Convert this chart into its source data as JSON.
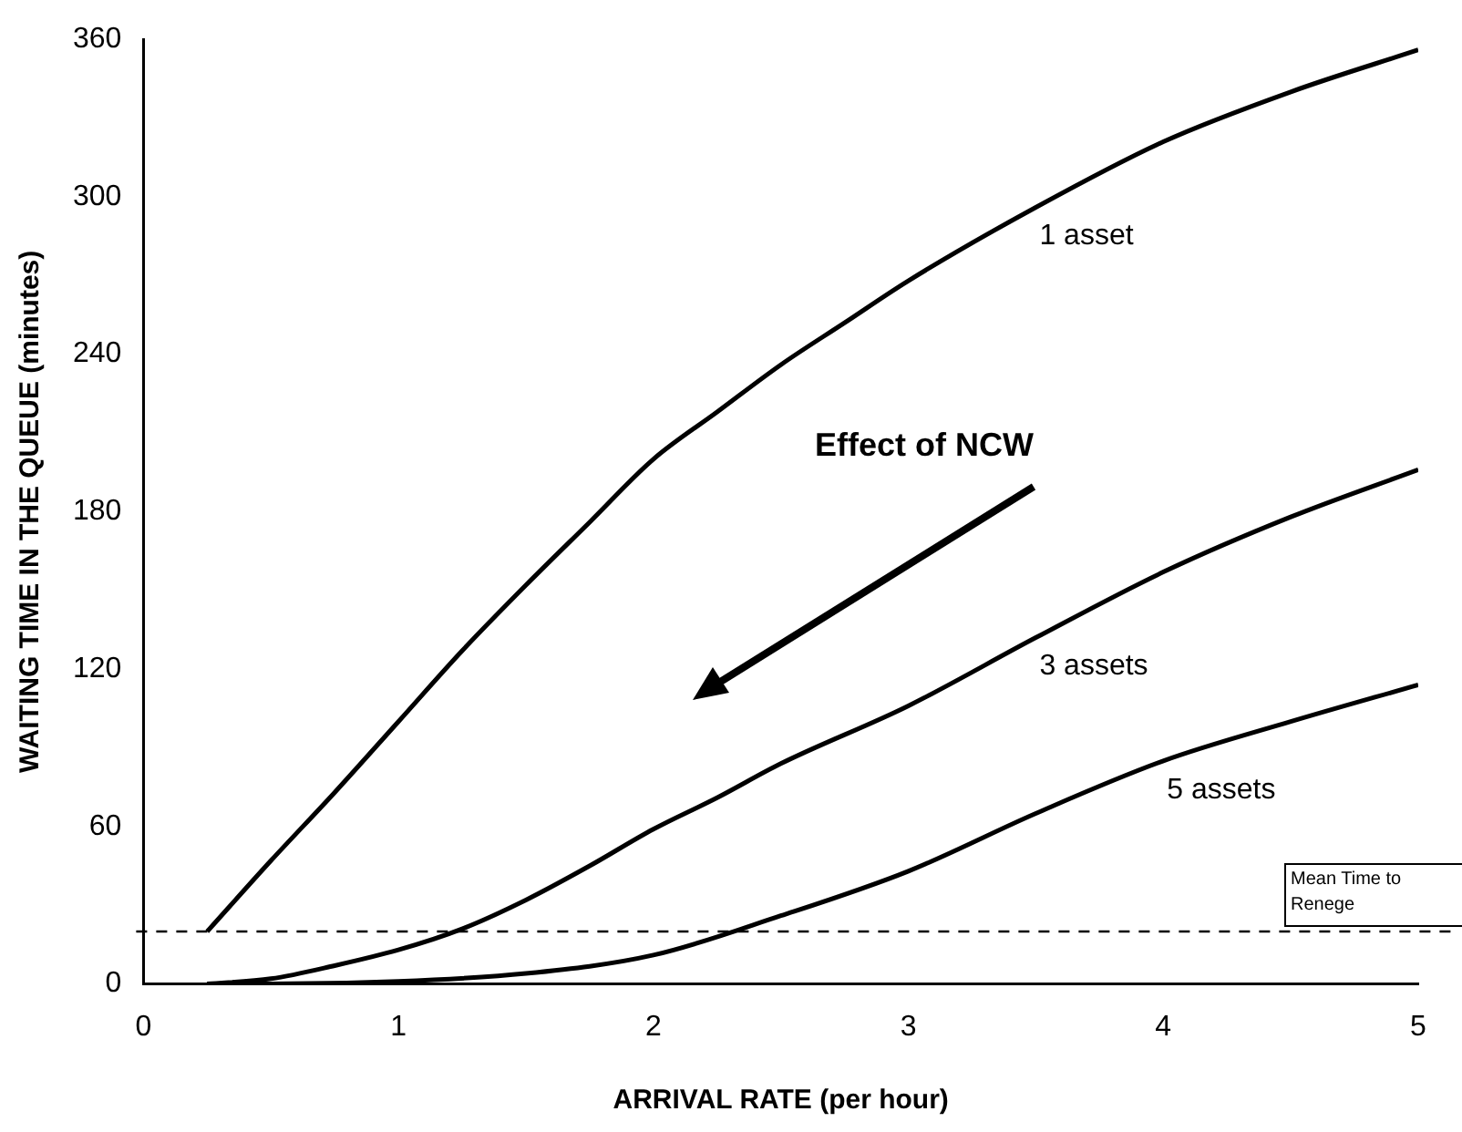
{
  "chart_data": {
    "type": "line",
    "xlabel": "ARRIVAL RATE (per hour)",
    "ylabel": "WAITING TIME IN THE QUEUE (minutes)",
    "xlim": [
      0,
      5
    ],
    "ylim": [
      0,
      360
    ],
    "xticks": [
      0,
      1,
      2,
      3,
      4,
      5
    ],
    "yticks": [
      0,
      60,
      120,
      180,
      240,
      300,
      360
    ],
    "grid": false,
    "legend": false,
    "marker": "none",
    "line_style": "solid",
    "series": [
      {
        "name": "1 asset",
        "color": "#000000",
        "x": [
          0.25,
          0.5,
          0.75,
          1,
          1.25,
          1.5,
          1.75,
          2,
          2.25,
          2.5,
          2.75,
          3,
          3.5,
          4,
          4.5,
          5
        ],
        "values": [
          20,
          47,
          73,
          100,
          127,
          152,
          176,
          200,
          218,
          236,
          252,
          268,
          296,
          321,
          340,
          356
        ]
      },
      {
        "name": "3 assets",
        "color": "#000000",
        "x": [
          0.25,
          0.5,
          0.75,
          1,
          1.25,
          1.5,
          1.75,
          2,
          2.25,
          2.5,
          3,
          3.5,
          4,
          4.5,
          5
        ],
        "values": [
          0,
          2,
          7,
          13,
          21,
          32,
          45,
          59,
          71,
          84,
          106,
          132,
          157,
          178,
          196
        ]
      },
      {
        "name": "5 assets",
        "color": "#000000",
        "x": [
          0.25,
          0.5,
          1,
          1.5,
          2,
          2.5,
          3,
          3.5,
          4,
          4.5,
          5
        ],
        "values": [
          0,
          0,
          1,
          4,
          11,
          26,
          43,
          65,
          85,
          100,
          114
        ]
      }
    ],
    "ref_lines": [
      {
        "axis": "y",
        "value": 20,
        "label": "Mean Time to Renege",
        "color": "#000000",
        "line_style": "dashed"
      }
    ],
    "annotations": [
      "Effect of NCW"
    ]
  }
}
